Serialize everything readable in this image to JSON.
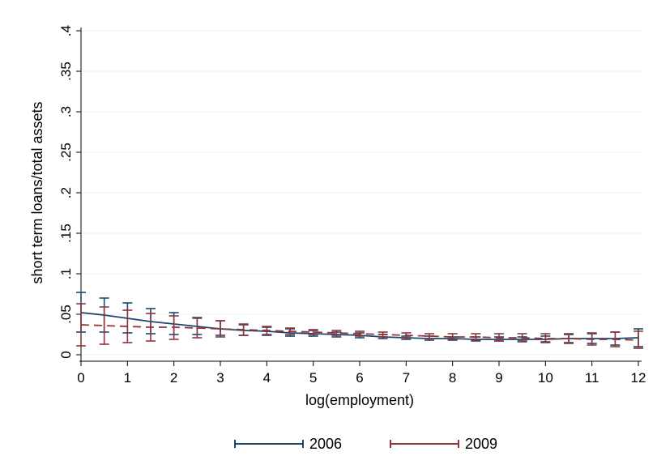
{
  "chart_data": {
    "type": "line",
    "title": "",
    "xlabel": "log(employment)",
    "ylabel": "short term loans/total assets",
    "xlim": [
      0,
      12
    ],
    "ylim": [
      0,
      0.4
    ],
    "x_ticks": [
      "0",
      "1",
      "2",
      "3",
      "4",
      "5",
      "6",
      "7",
      "8",
      "9",
      "10",
      "11",
      "12"
    ],
    "y_ticks": [
      "0",
      ".05",
      ".1",
      ".15",
      ".2",
      ".25",
      ".3",
      ".35",
      ".4"
    ],
    "grid": true,
    "legend_position": "bottom",
    "series": [
      {
        "name": "2006",
        "color": "#1a476f",
        "style": "solid",
        "x": [
          0,
          0.5,
          1,
          1.5,
          2,
          2.5,
          3,
          3.5,
          4,
          4.5,
          5,
          5.5,
          6,
          6.5,
          7,
          7.5,
          8,
          8.5,
          9,
          9.5,
          10,
          10.5,
          11,
          11.5,
          12
        ],
        "y": [
          0.052,
          0.049,
          0.045,
          0.041,
          0.038,
          0.035,
          0.032,
          0.03,
          0.029,
          0.027,
          0.026,
          0.025,
          0.024,
          0.022,
          0.021,
          0.02,
          0.02,
          0.019,
          0.019,
          0.019,
          0.019,
          0.02,
          0.02,
          0.02,
          0.021
        ],
        "ci_low": [
          0.028,
          0.028,
          0.027,
          0.026,
          0.025,
          0.025,
          0.024,
          0.024,
          0.024,
          0.023,
          0.023,
          0.022,
          0.021,
          0.02,
          0.019,
          0.018,
          0.018,
          0.017,
          0.017,
          0.017,
          0.016,
          0.015,
          0.014,
          0.012,
          0.01
        ],
        "ci_high": [
          0.077,
          0.07,
          0.064,
          0.057,
          0.052,
          0.046,
          0.042,
          0.037,
          0.034,
          0.032,
          0.03,
          0.028,
          0.027,
          0.025,
          0.023,
          0.023,
          0.022,
          0.022,
          0.022,
          0.022,
          0.023,
          0.025,
          0.026,
          0.028,
          0.032
        ]
      },
      {
        "name": "2009",
        "color": "#90353b",
        "style": "dashed",
        "x": [
          0,
          0.5,
          1,
          1.5,
          2,
          2.5,
          3,
          3.5,
          4,
          4.5,
          5,
          5.5,
          6,
          6.5,
          7,
          7.5,
          8,
          8.5,
          9,
          9.5,
          10,
          10.5,
          11,
          11.5,
          12
        ],
        "y": [
          0.037,
          0.036,
          0.035,
          0.034,
          0.034,
          0.033,
          0.032,
          0.031,
          0.03,
          0.029,
          0.028,
          0.027,
          0.026,
          0.025,
          0.024,
          0.023,
          0.022,
          0.022,
          0.021,
          0.021,
          0.02,
          0.02,
          0.019,
          0.019,
          0.018
        ],
        "ci_low": [
          0.011,
          0.013,
          0.015,
          0.017,
          0.019,
          0.021,
          0.022,
          0.024,
          0.025,
          0.025,
          0.025,
          0.024,
          0.023,
          0.022,
          0.021,
          0.02,
          0.019,
          0.018,
          0.017,
          0.016,
          0.015,
          0.014,
          0.012,
          0.01,
          0.008
        ],
        "ci_high": [
          0.063,
          0.059,
          0.055,
          0.051,
          0.048,
          0.045,
          0.042,
          0.038,
          0.035,
          0.033,
          0.031,
          0.03,
          0.029,
          0.028,
          0.027,
          0.026,
          0.026,
          0.026,
          0.026,
          0.026,
          0.026,
          0.026,
          0.027,
          0.028,
          0.029
        ]
      }
    ]
  }
}
